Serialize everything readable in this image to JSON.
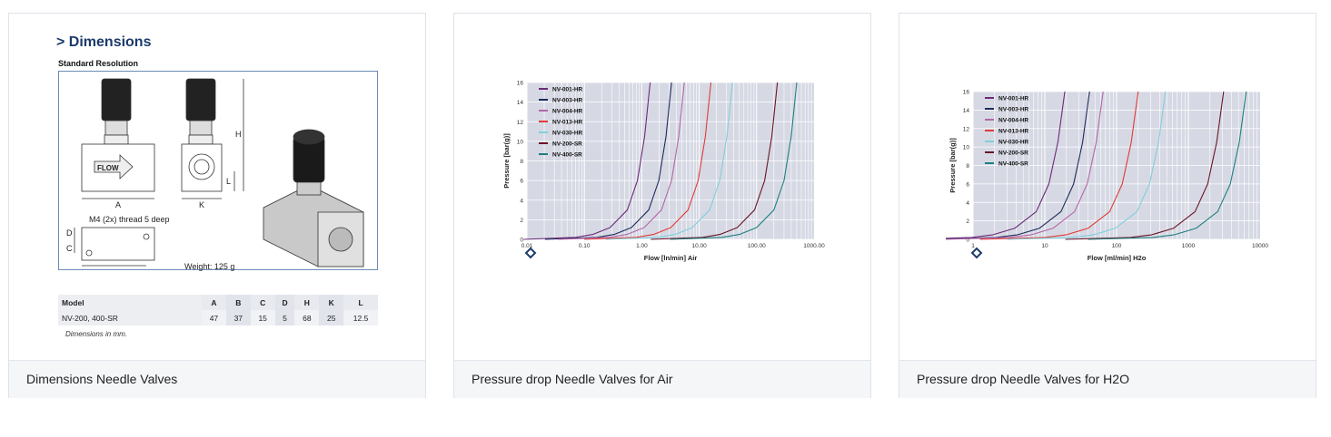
{
  "cards": [
    {
      "footer": "Dimensions Needle Valves",
      "dimensions": {
        "title": "> Dimensions",
        "subtitle": "Standard Resolution",
        "labels": {
          "A": "A",
          "B": "B",
          "C": "C",
          "D": "D",
          "H": "H",
          "K": "K",
          "L": "L",
          "flow": "FLOW"
        },
        "thread_note": "M4 (2x) thread 5 deep",
        "weight": "Weight: 125 g",
        "table": {
          "headers": [
            "Model",
            "A",
            "B",
            "C",
            "D",
            "H",
            "K",
            "L"
          ],
          "rows": [
            [
              "NV-200, 400-SR",
              "47",
              "37",
              "15",
              "5",
              "68",
              "25",
              "12.5"
            ]
          ]
        },
        "note": "Dimensions in mm."
      }
    },
    {
      "footer": "Pressure drop Needle Valves for Air"
    },
    {
      "footer": "Pressure drop Needle Valves for H2O"
    }
  ],
  "chart_data": [
    {
      "type": "line",
      "title": "Pressure drop Needle Valves for Air",
      "xlabel": "Flow [ln/min] Air",
      "ylabel": "Pressure [bar(g)]",
      "xscale": "log",
      "xlim": [
        0.01,
        1000
      ],
      "ylim": [
        0,
        16
      ],
      "xticks": [
        "0.01",
        "0.10",
        "1.00",
        "10.00",
        "100.00",
        "1000.00"
      ],
      "yticks": [
        "0",
        "2",
        "4",
        "6",
        "8",
        "10",
        "12",
        "14",
        "16"
      ],
      "grid": true,
      "legend": "top-left",
      "y": [
        0.2,
        0.5,
        1.2,
        3,
        6,
        10.5,
        16
      ],
      "series": [
        {
          "name": "NV-001-HR",
          "color": "#6b2a78",
          "x": [
            0.07,
            0.14,
            0.28,
            0.56,
            0.84,
            1.12,
            1.4
          ]
        },
        {
          "name": "NV-003-HR",
          "color": "#1f2a5c",
          "x": [
            0.165,
            0.33,
            0.66,
            1.32,
            1.98,
            2.64,
            3.3
          ]
        },
        {
          "name": "NV-004-HR",
          "color": "#b565a8",
          "x": [
            0.275,
            0.55,
            1.1,
            2.2,
            3.3,
            4.4,
            5.5
          ]
        },
        {
          "name": "NV-013-HR",
          "color": "#e03a35",
          "x": [
            0.8,
            1.6,
            3.2,
            6.4,
            9.6,
            12.8,
            16
          ]
        },
        {
          "name": "NV-030-HR",
          "color": "#7fcfdc",
          "x": [
            1.9,
            3.8,
            7.6,
            15.2,
            22.8,
            30.4,
            38
          ]
        },
        {
          "name": "NV-200-SR",
          "color": "#6b1425",
          "x": [
            11.5,
            23,
            46,
            92,
            138,
            184,
            230
          ]
        },
        {
          "name": "NV-400-SR",
          "color": "#1f7f7f",
          "x": [
            25,
            50,
            100,
            200,
            300,
            400,
            500
          ]
        }
      ]
    },
    {
      "type": "line",
      "title": "Pressure drop Needle Valves for H2O",
      "xlabel": "Flow [ml/min] H2o",
      "ylabel": "Pressure [bar(g)]",
      "xscale": "log",
      "xlim": [
        1,
        10000
      ],
      "ylim": [
        0,
        16
      ],
      "xticks": [
        "1",
        "10",
        "100",
        "1000",
        "10000"
      ],
      "yticks": [
        "0",
        "2",
        "4",
        "6",
        "8",
        "10",
        "12",
        "14",
        "16"
      ],
      "grid": true,
      "legend": "top-left",
      "y": [
        0.2,
        0.5,
        1.2,
        3,
        6,
        10.5,
        16
      ],
      "series": [
        {
          "name": "NV-001-HR",
          "color": "#6b2a78",
          "x": [
            0.95,
            1.9,
            3.8,
            7.6,
            11.4,
            15.2,
            19
          ]
        },
        {
          "name": "NV-003-HR",
          "color": "#1f2a5c",
          "x": [
            2.1,
            4.2,
            8.4,
            16.8,
            25.2,
            33.6,
            42
          ]
        },
        {
          "name": "NV-004-HR",
          "color": "#b565a8",
          "x": [
            3.25,
            6.5,
            13,
            26,
            39,
            52,
            65
          ]
        },
        {
          "name": "NV-013-HR",
          "color": "#e03a35",
          "x": [
            10,
            20,
            40,
            80,
            120,
            160,
            200
          ]
        },
        {
          "name": "NV-030-HR",
          "color": "#7fcfdc",
          "x": [
            24,
            48,
            96,
            192,
            288,
            384,
            480
          ]
        },
        {
          "name": "NV-200-SR",
          "color": "#6b1425",
          "x": [
            155,
            310,
            620,
            1240,
            1860,
            2480,
            3100
          ]
        },
        {
          "name": "NV-400-SR",
          "color": "#1f7f7f",
          "x": [
            320,
            640,
            1280,
            2560,
            3840,
            5120,
            6400
          ]
        }
      ]
    }
  ]
}
